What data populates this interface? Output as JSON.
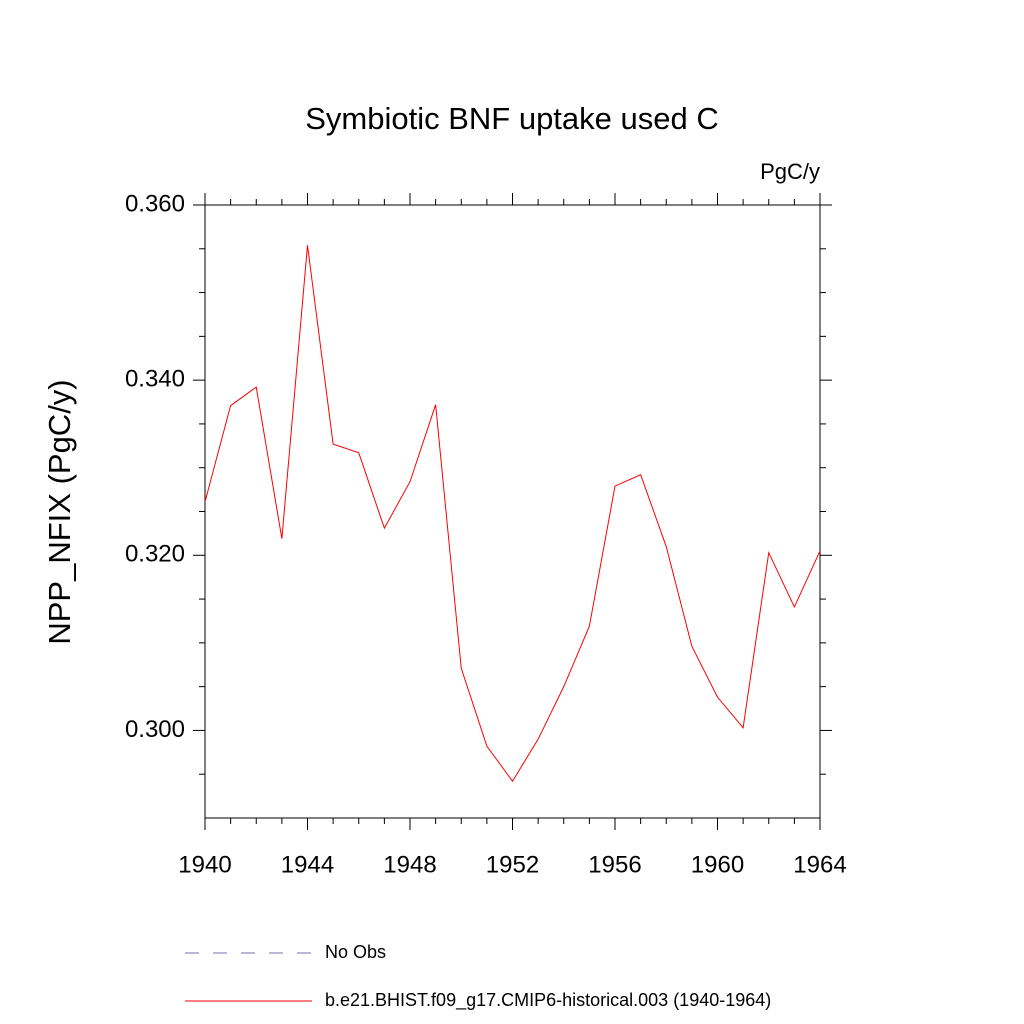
{
  "chart_data": {
    "type": "line",
    "title": "Symbiotic BNF uptake used C",
    "units": "PgC/y",
    "y_label": "NPP_NFIX  (PgC/y)",
    "x": [
      1940,
      1941,
      1942,
      1943,
      1944,
      1945,
      1946,
      1947,
      1948,
      1949,
      1950,
      1951,
      1952,
      1953,
      1954,
      1955,
      1956,
      1957,
      1958,
      1959,
      1960,
      1961,
      1962,
      1963,
      1964
    ],
    "series": [
      {
        "name": "b.e21.BHIST.f09_g17.CMIP6-historical.003 (1940-1964)",
        "color": "#ff0000",
        "values": [
          0.3261,
          0.3371,
          0.3392,
          0.3219,
          0.3554,
          0.3327,
          0.3317,
          0.3231,
          0.3284,
          0.3372,
          0.3071,
          0.2982,
          0.2942,
          0.299,
          0.305,
          0.3119,
          0.3279,
          0.3292,
          0.321,
          0.3096,
          0.3038,
          0.3003,
          0.3203,
          0.3141,
          0.3205
        ]
      }
    ],
    "obs_legend": {
      "name": "No Obs",
      "color": "#7070b0"
    },
    "xlim": [
      1940,
      1964
    ],
    "xticks": [
      1940,
      1944,
      1948,
      1952,
      1956,
      1960,
      1964
    ],
    "ylim": [
      0.29,
      0.36
    ],
    "yticks": [
      {
        "value": 0.3,
        "label": "0.300"
      },
      {
        "value": 0.32,
        "label": "0.320"
      },
      {
        "value": 0.34,
        "label": "0.340"
      },
      {
        "value": 0.36,
        "label": "0.360"
      }
    ],
    "yminorticks": [
      0.295,
      0.305,
      0.31,
      0.315,
      0.325,
      0.33,
      0.335,
      0.345,
      0.35,
      0.355
    ]
  }
}
